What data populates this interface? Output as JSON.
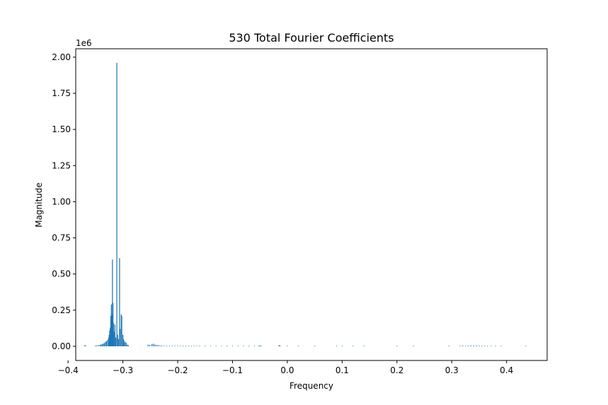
{
  "chart_data": {
    "type": "bar",
    "title": "530 Total Fourier Coefficients",
    "xlabel": "Frequency",
    "ylabel": "Magnitude",
    "y_offset_label": "1e6",
    "xlim": [
      -0.386,
      0.474
    ],
    "ylim": [
      -0.098,
      2.058
    ],
    "y_scale": 1000000,
    "x_ticks": [
      -0.4,
      -0.3,
      -0.2,
      -0.1,
      0.0,
      0.1,
      0.2,
      0.3,
      0.4
    ],
    "x_tick_labels": [
      "−0.4",
      "−0.3",
      "−0.2",
      "−0.1",
      "0.0",
      "0.1",
      "0.2",
      "0.3",
      "0.4"
    ],
    "y_ticks": [
      0.0,
      0.25,
      0.5,
      0.75,
      1.0,
      1.25,
      1.5,
      1.75,
      2.0
    ],
    "y_tick_labels": [
      "0.00",
      "0.25",
      "0.50",
      "0.75",
      "1.00",
      "1.25",
      "1.50",
      "1.75",
      "2.00"
    ],
    "bar_width": 0.0016,
    "bar_color": "#1f77b4",
    "grid": false,
    "legend": "none",
    "series": [
      {
        "x": [
          -0.37,
          -0.368,
          -0.35,
          -0.348,
          -0.345,
          -0.342,
          -0.34,
          -0.338,
          -0.336,
          -0.334,
          -0.332,
          -0.33,
          -0.328,
          -0.326,
          -0.325,
          -0.324,
          -0.323,
          -0.322,
          -0.321,
          -0.32,
          -0.319,
          -0.318,
          -0.317,
          -0.316,
          -0.3145,
          -0.313,
          -0.311,
          -0.3095,
          -0.308,
          -0.306,
          -0.305,
          -0.303,
          -0.302,
          -0.3,
          -0.299,
          -0.298,
          -0.296,
          -0.294,
          -0.292,
          -0.29,
          -0.254,
          -0.251,
          -0.247,
          -0.244,
          -0.241,
          -0.238,
          -0.235,
          -0.232,
          -0.229,
          -0.225,
          -0.22,
          -0.215,
          -0.21,
          -0.205,
          -0.2,
          -0.195,
          -0.19,
          -0.185,
          -0.18,
          -0.175,
          -0.17,
          -0.165,
          -0.16,
          -0.15,
          -0.14,
          -0.13,
          -0.12,
          -0.11,
          -0.1,
          -0.09,
          -0.08,
          -0.07,
          -0.06,
          -0.052,
          -0.05,
          -0.048,
          -0.015,
          -0.013,
          0.0,
          0.02,
          0.05,
          0.09,
          0.1,
          0.12,
          0.14,
          0.2,
          0.23,
          0.295,
          0.315,
          0.32,
          0.325,
          0.33,
          0.335,
          0.34,
          0.345,
          0.35,
          0.355,
          0.36,
          0.365,
          0.372,
          0.38,
          0.39,
          0.435
        ],
        "values": [
          0.005,
          0.008,
          0.004,
          0.006,
          0.008,
          0.01,
          0.012,
          0.015,
          0.018,
          0.022,
          0.03,
          0.035,
          0.045,
          0.06,
          0.08,
          0.11,
          0.13,
          0.21,
          0.29,
          0.22,
          0.6,
          0.3,
          0.16,
          0.1,
          0.15,
          0.06,
          1.96,
          0.08,
          0.05,
          0.61,
          0.12,
          0.22,
          0.21,
          0.08,
          0.05,
          0.04,
          0.03,
          0.025,
          0.012,
          0.008,
          0.012,
          0.01,
          0.015,
          0.018,
          0.012,
          0.01,
          0.008,
          0.006,
          0.005,
          0.004,
          0.004,
          0.003,
          0.003,
          0.002,
          0.002,
          0.002,
          0.002,
          0.002,
          0.002,
          0.001,
          0.001,
          0.001,
          0.001,
          0.001,
          0.001,
          0.001,
          0.0005,
          0.0005,
          0.0005,
          0.0005,
          0.0005,
          0.0005,
          0.0005,
          0.004,
          0.006,
          0.004,
          0.009,
          0.005,
          0.0005,
          0.0005,
          0.0005,
          0.003,
          0.003,
          0.002,
          0.001,
          0.001,
          0.001,
          0.003,
          0.004,
          0.005,
          0.004,
          0.005,
          0.006,
          0.005,
          0.006,
          0.005,
          0.004,
          0.003,
          0.002,
          0.002,
          0.003,
          0.002,
          0.002
        ]
      }
    ]
  }
}
